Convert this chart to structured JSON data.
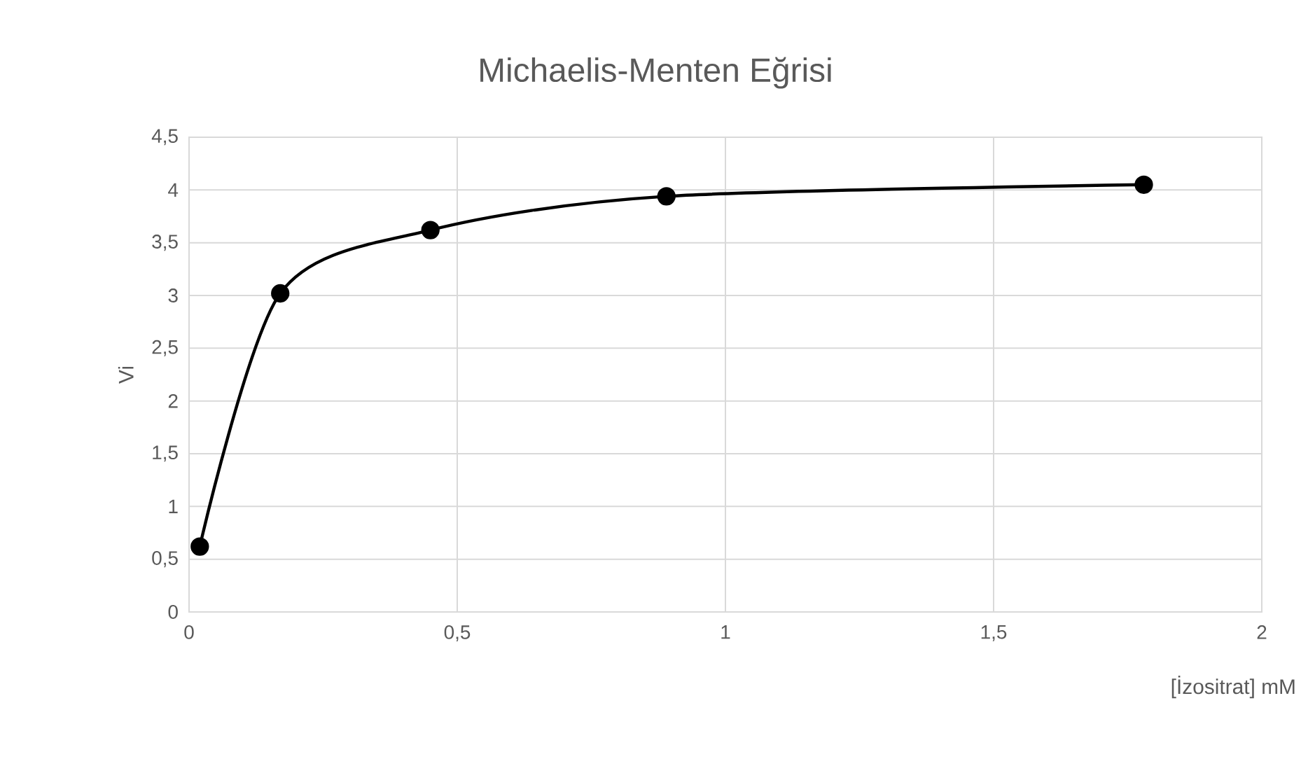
{
  "chart_data": {
    "type": "line",
    "title": "Michaelis-Menten Eğrisi",
    "xlabel": "[İzositrat] mM",
    "ylabel": "Vi",
    "x": [
      0.02,
      0.17,
      0.45,
      0.89,
      1.78
    ],
    "series": [
      {
        "color": "#000000",
        "values": [
          0.62,
          3.02,
          3.62,
          3.94,
          4.05
        ]
      }
    ],
    "xlim": [
      0,
      2
    ],
    "xticks": [
      0,
      {
        "value": 0.5,
        "label": "0,5"
      },
      1,
      {
        "value": 1.5,
        "label": "1,5"
      },
      2
    ],
    "ylim": [
      0,
      4.5
    ],
    "yticks": [
      0,
      {
        "value": 0.5,
        "label": "0,5"
      },
      1,
      {
        "value": 1.5,
        "label": "1,5"
      },
      2,
      {
        "value": 2.5,
        "label": "2,5"
      },
      3,
      {
        "value": 3.5,
        "label": "3,5"
      },
      4,
      {
        "value": 4.5,
        "label": "4,5"
      }
    ],
    "grid": true,
    "marker": "circle",
    "line_style": "solid"
  }
}
